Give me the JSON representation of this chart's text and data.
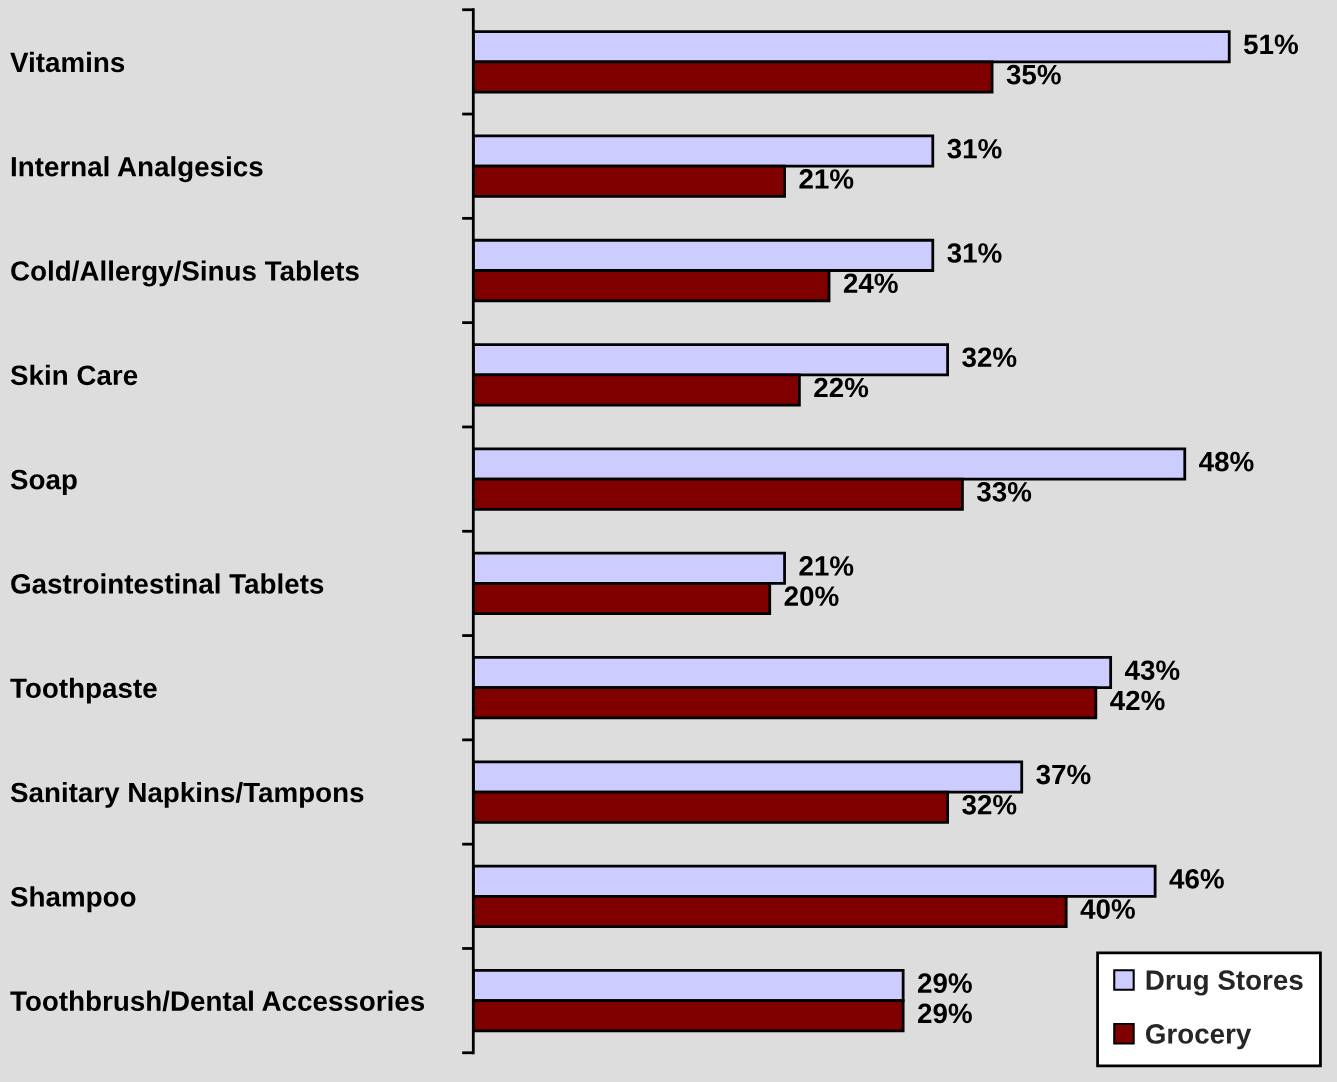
{
  "chart_data": {
    "type": "bar",
    "orientation": "horizontal",
    "categories": [
      "Vitamins",
      "Internal Analgesics",
      "Cold/Allergy/Sinus Tablets",
      "Skin Care",
      "Soap",
      "Gastrointestinal Tablets",
      "Toothpaste",
      "Sanitary Napkins/Tampons",
      "Shampoo",
      "Toothbrush/Dental Accessories"
    ],
    "series": [
      {
        "name": "Drug Stores",
        "color": "#ccccff",
        "values": [
          51,
          31,
          31,
          32,
          48,
          21,
          43,
          37,
          46,
          29
        ],
        "value_labels": [
          "51%",
          "31%",
          "31%",
          "32%",
          "48%",
          "21%",
          "43%",
          "37%",
          "46%",
          "29%"
        ]
      },
      {
        "name": "Grocery",
        "color": "#800000",
        "values": [
          35,
          21,
          24,
          22,
          33,
          20,
          42,
          32,
          40,
          29
        ],
        "value_labels": [
          "35%",
          "21%",
          "24%",
          "22%",
          "33%",
          "20%",
          "42%",
          "32%",
          "40%",
          "29%"
        ]
      }
    ],
    "xlim": [
      0,
      58
    ],
    "tick_labels": "y",
    "legend": "bottom right"
  }
}
